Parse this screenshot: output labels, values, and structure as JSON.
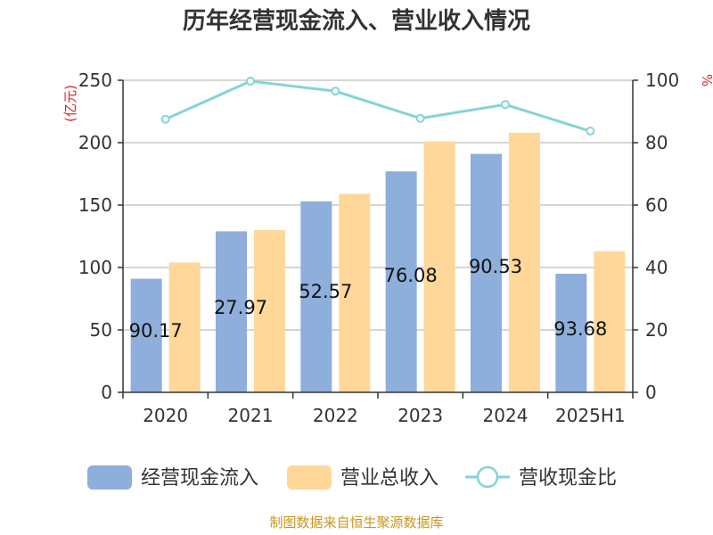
{
  "chart_data": {
    "type": "bar+line",
    "title": "历年经营现金流入、营业收入情况",
    "categories": [
      "2020",
      "2021",
      "2022",
      "2023",
      "2024",
      "2025H1"
    ],
    "series": [
      {
        "name": "经营现金流入",
        "type": "bar",
        "axis": "left",
        "color": "#8eaedb",
        "values": [
          91,
          129,
          153,
          177,
          191,
          95
        ]
      },
      {
        "name": "营业总收入",
        "type": "bar",
        "axis": "left",
        "color": "#fed799",
        "values": [
          104,
          130,
          159,
          201,
          208,
          113
        ]
      },
      {
        "name": "营收现金比",
        "type": "line",
        "axis": "right",
        "color": "#84d4d8",
        "values": [
          87.5,
          99.7,
          96.5,
          87.8,
          92.2,
          83.7
        ]
      }
    ],
    "data_labels": [
      "90.17",
      "27.97",
      "52.57",
      "76.08",
      "90.53",
      "93.68"
    ],
    "left_axis": {
      "unit": "(亿元)",
      "ylim": [
        0,
        250
      ],
      "ticks": [
        0,
        50,
        100,
        150,
        200,
        250
      ]
    },
    "right_axis": {
      "unit": "%",
      "ylim": [
        0,
        100
      ],
      "ticks": [
        0,
        20,
        40,
        60,
        80,
        100
      ]
    },
    "grid": true,
    "legend": "bottom",
    "source": "制图数据来自恒生聚源数据库"
  }
}
